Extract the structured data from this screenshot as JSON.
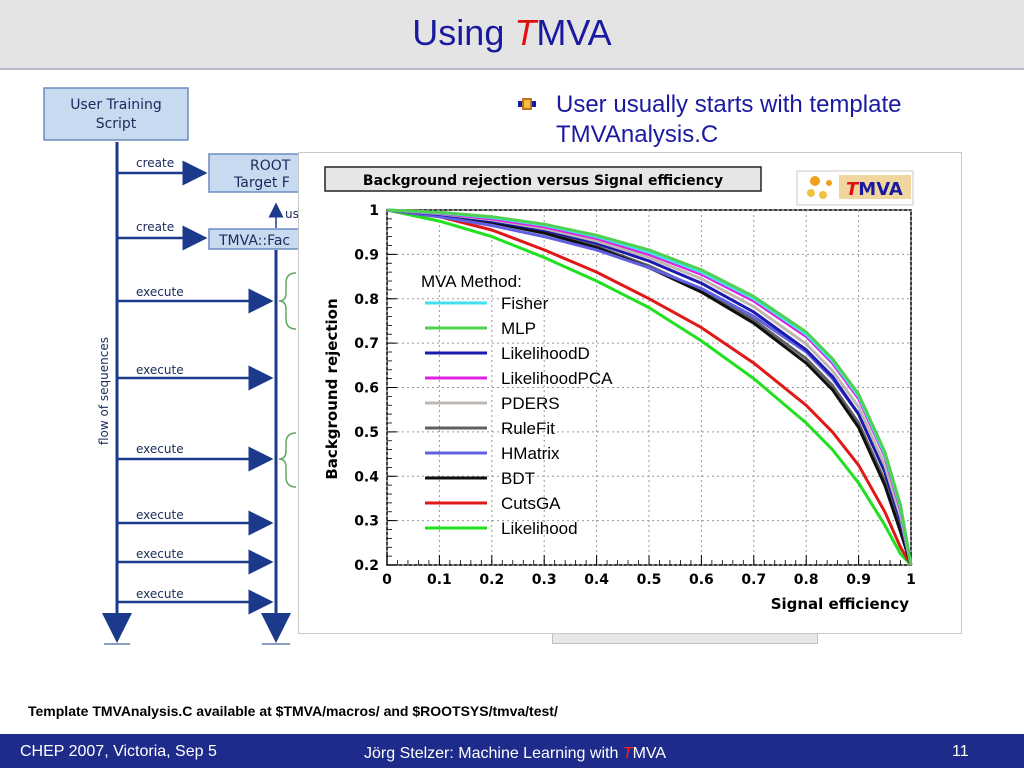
{
  "slide": {
    "title_prefix": "Using ",
    "title_t": "T",
    "title_rest": "MVA",
    "bullet": "User usually starts with template TMVAnalysis.C",
    "footnote": "Template TMVAnalysis.C available at $TMVA/macros/ and $ROOTSYS/tmva/test/",
    "footer_left": "CHEP 2007, Victoria, Sep 5",
    "footer_center_prefix": "Jörg Stelzer: Machine Learning with ",
    "footer_center_t": "T",
    "footer_center_rest": "MVA",
    "page_number": "11"
  },
  "diagram": {
    "user_script": [
      "User Training",
      "Script"
    ],
    "root_box": [
      "ROOT",
      "Target F"
    ],
    "factory_box": "TMVA::Fac",
    "uses_label": "us",
    "flow_label": "flow of sequences",
    "arrows": [
      "create",
      "create",
      "execute",
      "execute",
      "execute",
      "execute",
      "execute",
      "execute"
    ]
  },
  "chart_logo": {
    "t": "T",
    "rest": "MVA"
  },
  "colors": {
    "slide_blue": "#1a1aa0",
    "footer_bg": "#1e2b8a",
    "diagram_blue": "#1c3a8c",
    "box_fill": "#c8daf0"
  },
  "chart_data": {
    "type": "line",
    "title": "Background rejection versus Signal efficiency",
    "xlabel": "Signal efficiency",
    "ylabel": "Background rejection",
    "xlim": [
      0,
      1
    ],
    "ylim": [
      0.2,
      1
    ],
    "xticks": [
      "0",
      "0.1",
      "0.2",
      "0.3",
      "0.4",
      "0.5",
      "0.6",
      "0.7",
      "0.8",
      "0.9",
      "1"
    ],
    "yticks": [
      "0.2",
      "0.3",
      "0.4",
      "0.5",
      "0.6",
      "0.7",
      "0.8",
      "0.9",
      "1"
    ],
    "legend_title": "MVA Method:",
    "legend_position": "center-left",
    "grid": true,
    "series": [
      {
        "name": "Fisher",
        "color": "#40e0f0",
        "x": [
          0,
          0.1,
          0.2,
          0.3,
          0.4,
          0.5,
          0.6,
          0.7,
          0.8,
          0.85,
          0.9,
          0.95,
          0.98,
          1.0
        ],
        "y": [
          1.0,
          0.994,
          0.983,
          0.966,
          0.94,
          0.905,
          0.86,
          0.8,
          0.72,
          0.66,
          0.58,
          0.45,
          0.33,
          0.2
        ]
      },
      {
        "name": "MLP",
        "color": "#50d050",
        "x": [
          0,
          0.1,
          0.2,
          0.3,
          0.4,
          0.5,
          0.6,
          0.7,
          0.8,
          0.85,
          0.9,
          0.95,
          0.98,
          1.0
        ],
        "y": [
          1.0,
          0.995,
          0.985,
          0.968,
          0.943,
          0.91,
          0.865,
          0.805,
          0.725,
          0.665,
          0.585,
          0.455,
          0.335,
          0.2
        ]
      },
      {
        "name": "LikelihoodD",
        "color": "#1a1ab0",
        "x": [
          0,
          0.1,
          0.2,
          0.3,
          0.4,
          0.5,
          0.6,
          0.7,
          0.8,
          0.85,
          0.9,
          0.95,
          0.98,
          1.0
        ],
        "y": [
          1.0,
          0.99,
          0.975,
          0.955,
          0.925,
          0.885,
          0.835,
          0.77,
          0.685,
          0.625,
          0.54,
          0.41,
          0.3,
          0.2
        ]
      },
      {
        "name": "LikelihoodPCA",
        "color": "#e020e0",
        "x": [
          0,
          0.1,
          0.2,
          0.3,
          0.4,
          0.5,
          0.6,
          0.7,
          0.8,
          0.85,
          0.9,
          0.95,
          0.98,
          1.0
        ],
        "y": [
          1.0,
          0.993,
          0.98,
          0.962,
          0.936,
          0.9,
          0.855,
          0.795,
          0.715,
          0.655,
          0.575,
          0.445,
          0.325,
          0.2
        ]
      },
      {
        "name": "PDERS",
        "color": "#c0b8b0",
        "x": [
          0,
          0.1,
          0.2,
          0.3,
          0.4,
          0.5,
          0.6,
          0.7,
          0.8,
          0.85,
          0.9,
          0.95,
          0.98,
          1.0
        ],
        "y": [
          1.0,
          0.992,
          0.978,
          0.958,
          0.93,
          0.893,
          0.845,
          0.782,
          0.698,
          0.638,
          0.556,
          0.425,
          0.31,
          0.2
        ]
      },
      {
        "name": "RuleFit",
        "color": "#606060",
        "x": [
          0,
          0.1,
          0.2,
          0.3,
          0.4,
          0.5,
          0.6,
          0.7,
          0.8,
          0.85,
          0.9,
          0.95,
          0.98,
          1.0
        ],
        "y": [
          1.0,
          0.99,
          0.973,
          0.95,
          0.918,
          0.874,
          0.82,
          0.752,
          0.665,
          0.605,
          0.52,
          0.39,
          0.285,
          0.2
        ]
      },
      {
        "name": "HMatrix",
        "color": "#6060e0",
        "x": [
          0,
          0.1,
          0.2,
          0.3,
          0.4,
          0.5,
          0.6,
          0.7,
          0.8,
          0.85,
          0.9,
          0.95,
          0.98,
          1.0
        ],
        "y": [
          1.0,
          0.985,
          0.965,
          0.94,
          0.91,
          0.87,
          0.823,
          0.76,
          0.68,
          0.62,
          0.54,
          0.41,
          0.3,
          0.2
        ]
      },
      {
        "name": "BDT",
        "color": "#101010",
        "x": [
          0,
          0.1,
          0.2,
          0.3,
          0.4,
          0.5,
          0.6,
          0.7,
          0.8,
          0.85,
          0.9,
          0.95,
          0.98,
          1.0
        ],
        "y": [
          1.0,
          0.99,
          0.972,
          0.948,
          0.915,
          0.87,
          0.815,
          0.745,
          0.655,
          0.595,
          0.51,
          0.38,
          0.275,
          0.2
        ]
      },
      {
        "name": "CutsGA",
        "color": "#e01818",
        "x": [
          0,
          0.1,
          0.2,
          0.3,
          0.4,
          0.5,
          0.6,
          0.7,
          0.8,
          0.85,
          0.9,
          0.95,
          0.98,
          1.0
        ],
        "y": [
          1.0,
          0.985,
          0.955,
          0.91,
          0.86,
          0.8,
          0.735,
          0.655,
          0.56,
          0.5,
          0.425,
          0.32,
          0.24,
          0.2
        ]
      },
      {
        "name": "Likelihood",
        "color": "#20e020",
        "x": [
          0,
          0.1,
          0.2,
          0.3,
          0.4,
          0.5,
          0.6,
          0.7,
          0.8,
          0.85,
          0.9,
          0.95,
          0.98,
          1.0
        ],
        "y": [
          1.0,
          0.975,
          0.94,
          0.893,
          0.84,
          0.78,
          0.705,
          0.62,
          0.52,
          0.46,
          0.385,
          0.29,
          0.225,
          0.2
        ]
      }
    ]
  }
}
